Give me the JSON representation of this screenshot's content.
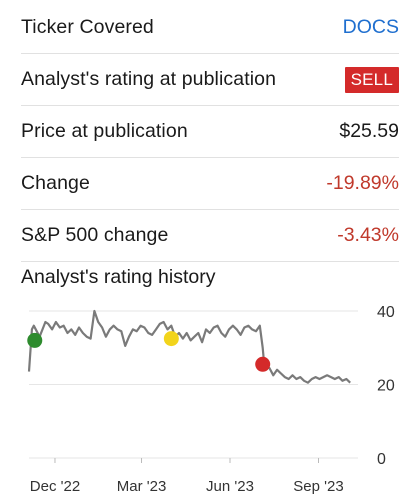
{
  "summary": {
    "ticker_label": "Ticker Covered",
    "ticker_value": "DOCS",
    "rating_label": "Analyst's rating at publication",
    "rating_value": "SELL",
    "price_label": "Price at publication",
    "price_value": "$25.59",
    "change_label": "Change",
    "change_value": "-19.89%",
    "sp_label": "S&P 500 change",
    "sp_value": "-3.43%"
  },
  "history": {
    "title": "Analyst's rating history"
  },
  "colors": {
    "link": "#1f6fcf",
    "negative": "#c0392b",
    "sell": "#d42a2a",
    "line": "#7a7a7a",
    "marker_buy": "#2e8b2e",
    "marker_hold": "#f2d41c",
    "marker_sell": "#d42a2a"
  },
  "chart_data": {
    "type": "line",
    "x_tick_labels": [
      "Dec '22",
      "Mar '23",
      "Jun '23",
      "Sep '23"
    ],
    "x_ticks_days": [
      27,
      117,
      209,
      301
    ],
    "y_ticks": [
      0,
      20,
      40
    ],
    "ylim": [
      0,
      40
    ],
    "xlim_days": [
      0,
      340
    ],
    "series": [
      {
        "values_x_days": [
          0,
          2,
          3,
          5,
          8,
          11,
          14,
          17,
          20,
          24,
          28,
          32,
          36,
          40,
          44,
          48,
          52,
          56,
          60,
          64,
          68,
          72,
          76,
          80,
          84,
          88,
          92,
          96,
          100,
          104,
          108,
          112,
          116,
          120,
          124,
          128,
          132,
          136,
          140,
          144,
          148,
          152,
          156,
          160,
          164,
          168,
          172,
          176,
          180,
          184,
          188,
          192,
          196,
          200,
          204,
          208,
          212,
          216,
          220,
          224,
          228,
          232,
          236,
          240,
          243,
          244,
          246,
          250,
          254,
          258,
          262,
          266,
          270,
          274,
          278,
          282,
          286,
          290,
          294,
          298,
          302,
          306,
          310,
          314,
          318,
          322,
          326,
          330,
          334
        ],
        "values_y": [
          23.5,
          31,
          35,
          36,
          34.5,
          33,
          35,
          37,
          36.5,
          35,
          37,
          35.5,
          36,
          34,
          35,
          33.5,
          35.5,
          34,
          33,
          32.5,
          40,
          37,
          35.5,
          33,
          35,
          36,
          35,
          34.5,
          30.5,
          33,
          35,
          34.5,
          36,
          35.5,
          34,
          33.5,
          35,
          36.5,
          37,
          35,
          36,
          33,
          34,
          32.5,
          34,
          32,
          33,
          34,
          31.5,
          35,
          34,
          35.5,
          36,
          34,
          33,
          35,
          36,
          35,
          33.5,
          35.5,
          36,
          35,
          34.5,
          36,
          30,
          27,
          25,
          24.5,
          22.5,
          24,
          23,
          22,
          21.5,
          22.5,
          21.5,
          22,
          21,
          20.5,
          21.5,
          22,
          21.5,
          22,
          22.5,
          22,
          21.5,
          22,
          21,
          21.5,
          20.5
        ]
      }
    ],
    "rating_markers": [
      {
        "rating": "buy",
        "x_days": 6,
        "y": 32
      },
      {
        "rating": "hold",
        "x_days": 148,
        "y": 32.5
      },
      {
        "rating": "sell",
        "x_days": 243,
        "y": 25.5
      }
    ]
  }
}
